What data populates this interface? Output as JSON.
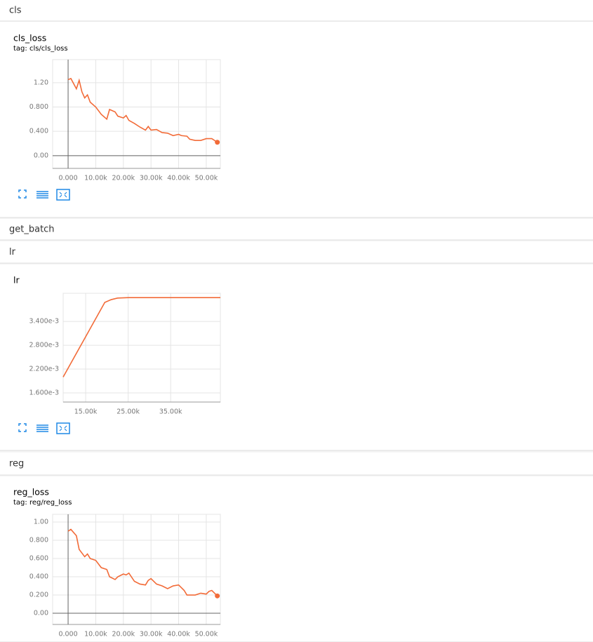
{
  "sections": [
    {
      "name": "cls",
      "chart_data": {
        "type": "line",
        "title": "cls_loss",
        "subtitle": "tag: cls/cls_loss",
        "end_dot": true,
        "xlim": [
          -5600,
          55100
        ],
        "ylim": [
          -0.21,
          1.58
        ],
        "xticks": [
          {
            "value": 0,
            "label": "0.000"
          },
          {
            "value": 10000,
            "label": "10.00k"
          },
          {
            "value": 20000,
            "label": "20.00k"
          },
          {
            "value": 30000,
            "label": "30.00k"
          },
          {
            "value": 40000,
            "label": "40.00k"
          },
          {
            "value": 50000,
            "label": "50.00k"
          }
        ],
        "yticks": [
          {
            "value": 0,
            "label": "0.00"
          },
          {
            "value": 0.4,
            "label": "0.400"
          },
          {
            "value": 0.8,
            "label": "0.800"
          },
          {
            "value": 1.2,
            "label": "1.20"
          }
        ],
        "x": [
          0,
          1000,
          3000,
          4000,
          5000,
          6000,
          7000,
          8000,
          10000,
          12000,
          14000,
          15000,
          17000,
          18000,
          20000,
          21000,
          22000,
          24000,
          26000,
          28000,
          29000,
          30000,
          32000,
          34000,
          36000,
          38000,
          40000,
          41000,
          43000,
          44000,
          46000,
          48000,
          50000,
          52000,
          54000
        ],
        "series": [
          {
            "color": "#f26b38",
            "values": [
              1.25,
              1.27,
              1.1,
              1.24,
              1.05,
              0.95,
              1.0,
              0.88,
              0.8,
              0.68,
              0.6,
              0.76,
              0.72,
              0.65,
              0.62,
              0.66,
              0.58,
              0.53,
              0.47,
              0.42,
              0.48,
              0.42,
              0.43,
              0.38,
              0.37,
              0.33,
              0.35,
              0.33,
              0.32,
              0.27,
              0.25,
              0.25,
              0.28,
              0.28,
              0.22
            ]
          }
        ]
      }
    },
    {
      "name": "get_batch"
    },
    {
      "name": "lr",
      "chart_data": {
        "type": "line",
        "title": "lr",
        "end_dot": false,
        "xlim": [
          9700,
          46700
        ],
        "ylim": [
          0.00137,
          0.00411
        ],
        "xticks": [
          {
            "value": 15000,
            "label": "15.00k"
          },
          {
            "value": 25000,
            "label": "25.00k"
          },
          {
            "value": 35000,
            "label": "35.00k"
          }
        ],
        "yticks": [
          {
            "value": 0.0016,
            "label": "1.600e-3"
          },
          {
            "value": 0.0022,
            "label": "2.200e-3"
          },
          {
            "value": 0.0028,
            "label": "2.800e-3"
          },
          {
            "value": 0.0034,
            "label": "3.400e-3"
          }
        ],
        "x": [
          9700,
          19500,
          21000,
          22500,
          25000,
          46700
        ],
        "series": [
          {
            "color": "#f26b38",
            "values": [
              0.002,
              0.00388,
              0.00395,
              0.00399,
              0.004,
              0.004
            ]
          }
        ]
      }
    },
    {
      "name": "reg",
      "chart_data": {
        "type": "line",
        "title": "reg_loss",
        "subtitle": "tag: reg/reg_loss",
        "end_dot": true,
        "xlim": [
          -5600,
          55100
        ],
        "ylim": [
          -0.123,
          1.085
        ],
        "xticks": [
          {
            "value": 0,
            "label": "0.000"
          },
          {
            "value": 10000,
            "label": "10.00k"
          },
          {
            "value": 20000,
            "label": "20.00k"
          },
          {
            "value": 30000,
            "label": "30.00k"
          },
          {
            "value": 40000,
            "label": "40.00k"
          },
          {
            "value": 50000,
            "label": "50.00k"
          }
        ],
        "yticks": [
          {
            "value": 0,
            "label": "0.00"
          },
          {
            "value": 0.2,
            "label": "0.200"
          },
          {
            "value": 0.4,
            "label": "0.400"
          },
          {
            "value": 0.6,
            "label": "0.600"
          },
          {
            "value": 0.8,
            "label": "0.800"
          },
          {
            "value": 1.0,
            "label": "1.00"
          }
        ],
        "x": [
          0,
          1000,
          3000,
          4000,
          6000,
          7000,
          8000,
          10000,
          12000,
          14000,
          15000,
          17000,
          18000,
          20000,
          21000,
          22000,
          24000,
          26000,
          28000,
          29000,
          30000,
          32000,
          34000,
          36000,
          38000,
          40000,
          42000,
          43000,
          46000,
          48000,
          50000,
          51000,
          52000,
          54000
        ],
        "series": [
          {
            "color": "#f26b38",
            "values": [
              0.9,
              0.92,
              0.85,
              0.7,
              0.62,
              0.65,
              0.6,
              0.58,
              0.5,
              0.48,
              0.4,
              0.37,
              0.4,
              0.43,
              0.42,
              0.44,
              0.35,
              0.32,
              0.31,
              0.36,
              0.38,
              0.32,
              0.3,
              0.27,
              0.3,
              0.31,
              0.25,
              0.2,
              0.2,
              0.22,
              0.21,
              0.24,
              0.25,
              0.19
            ]
          }
        ]
      }
    }
  ]
}
